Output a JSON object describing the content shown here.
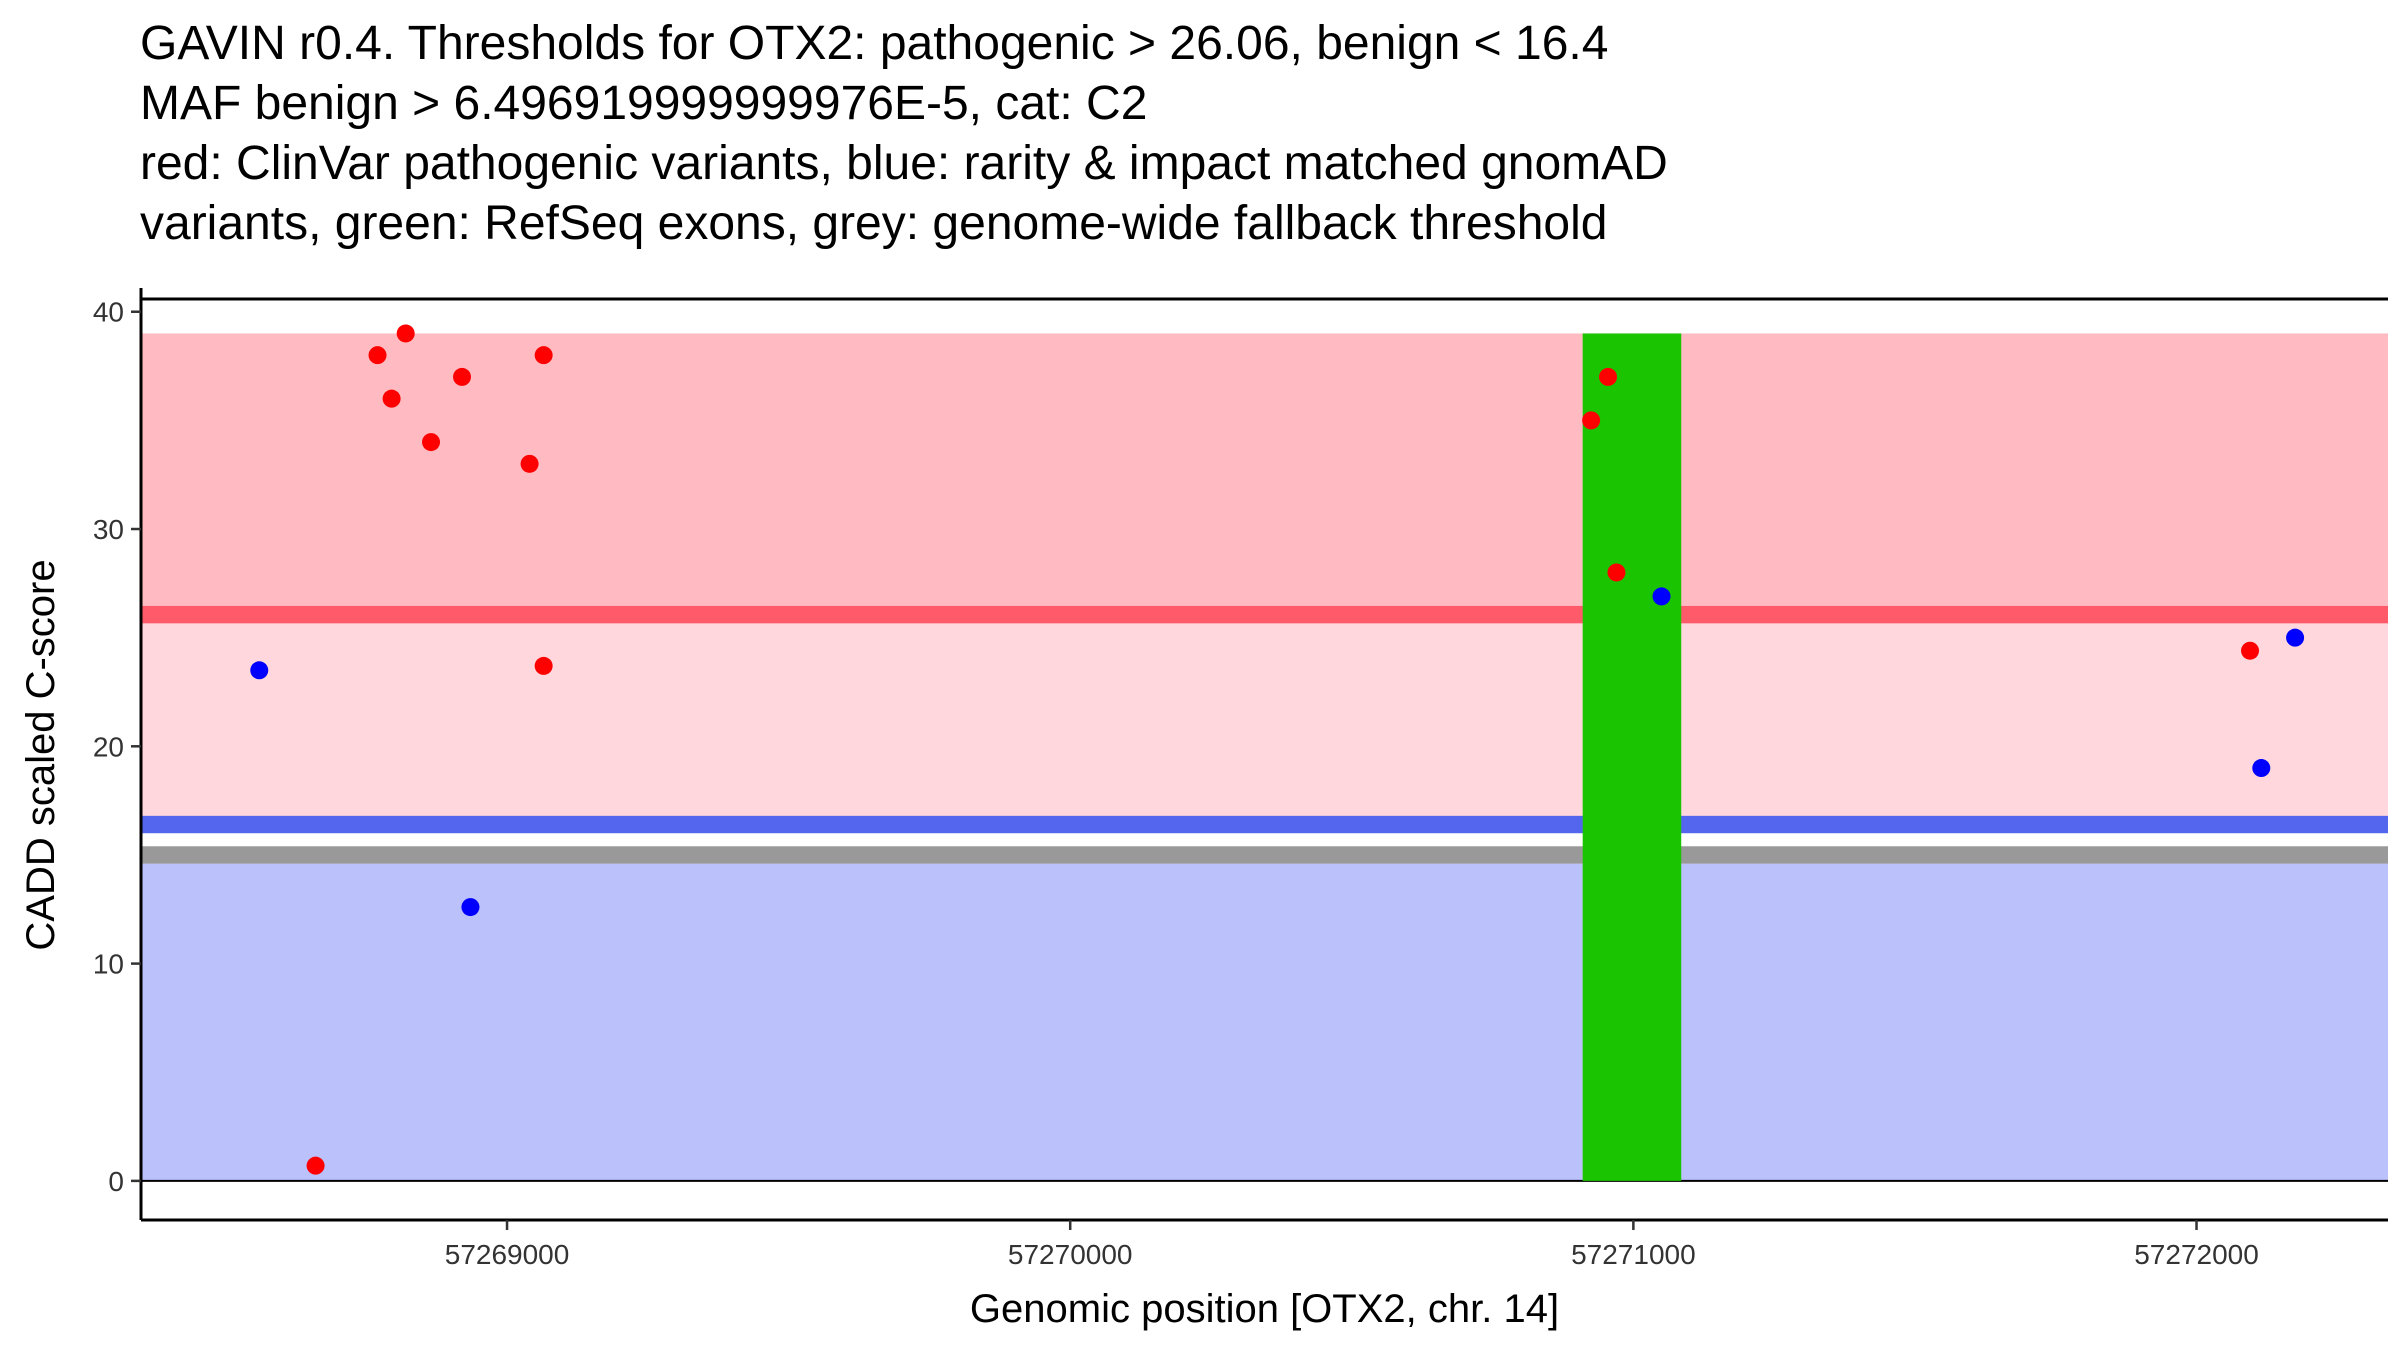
{
  "chart_data": {
    "type": "scatter",
    "title_lines": [
      "GAVIN r0.4. Thresholds for OTX2: pathogenic > 26.06, benign < 16.4",
      "MAF benign > 6.496919999999976E-5, cat: C2",
      "red: ClinVar pathogenic variants, blue: rarity & impact matched gnomAD",
      "variants, green: RefSeq exons, grey: genome-wide fallback threshold"
    ],
    "xlabel": "Genomic position [OTX2, chr. 14]",
    "ylabel": "CADD scaled C-score",
    "xlim": [
      57268350,
      57272340
    ],
    "ylim": [
      -1.8,
      41
    ],
    "x_ticks": [
      57269000,
      57270000,
      57271000,
      57272000
    ],
    "x_tick_labels": [
      "57269000",
      "57270000",
      "57271000",
      "57272000"
    ],
    "y_ticks": [
      0,
      10,
      20,
      30,
      40
    ],
    "y_tick_labels": [
      "0",
      "10",
      "20",
      "30",
      "40"
    ],
    "regions": [
      {
        "name": "benign-region",
        "y0": 0,
        "y1": 14.6,
        "color": "#bbc1fb"
      },
      {
        "name": "uncertain-region",
        "y0": 16.4,
        "y1": 26.06,
        "color": "#ffd7dc"
      },
      {
        "name": "pathogenic-region",
        "y0": 26.06,
        "y1": 39,
        "color": "#ffbbc1"
      }
    ],
    "threshold_lines": [
      {
        "name": "pathogenic-threshold",
        "value": 26.06,
        "color": "#ff5a69",
        "band": 0.8
      },
      {
        "name": "benign-threshold",
        "value": 16.4,
        "color": "#5566ee",
        "band": 0.8
      },
      {
        "name": "fallback-threshold",
        "value": 15.0,
        "color": "#999999",
        "band": 0.8
      }
    ],
    "exons": [
      {
        "name": "refseq-exon",
        "x0": 57270910,
        "x1": 57271085,
        "y0": 0,
        "y1": 39,
        "color": "#1ac400"
      }
    ],
    "series": [
      {
        "name": "ClinVar pathogenic variants",
        "color": "#ff0000",
        "points": [
          {
            "x": 57268660,
            "y": 0.7
          },
          {
            "x": 57268770,
            "y": 38
          },
          {
            "x": 57268795,
            "y": 36
          },
          {
            "x": 57268820,
            "y": 39
          },
          {
            "x": 57268865,
            "y": 34
          },
          {
            "x": 57268920,
            "y": 37
          },
          {
            "x": 57269040,
            "y": 33
          },
          {
            "x": 57269065,
            "y": 38
          },
          {
            "x": 57269065,
            "y": 23.7
          },
          {
            "x": 57270925,
            "y": 35
          },
          {
            "x": 57270955,
            "y": 37
          },
          {
            "x": 57270970,
            "y": 28
          },
          {
            "x": 57272095,
            "y": 24.4
          }
        ]
      },
      {
        "name": "rarity & impact matched gnomAD variants",
        "color": "#0000ff",
        "points": [
          {
            "x": 57268560,
            "y": 23.5
          },
          {
            "x": 57268935,
            "y": 12.6
          },
          {
            "x": 57271050,
            "y": 26.9
          },
          {
            "x": 57272115,
            "y": 19
          },
          {
            "x": 57272175,
            "y": 25
          }
        ]
      }
    ]
  }
}
